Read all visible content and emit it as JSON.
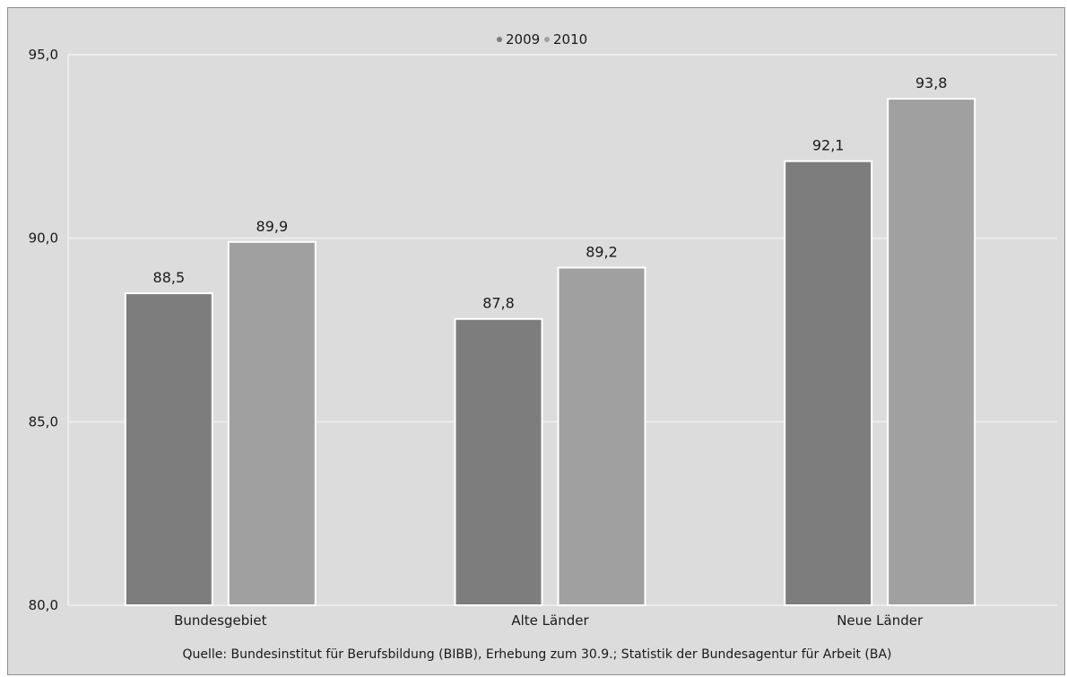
{
  "chart_data": {
    "type": "bar",
    "categories": [
      "Bundesgebiet",
      "Alte Länder",
      "Neue Länder"
    ],
    "series": [
      {
        "name": "2009",
        "values": [
          88.5,
          87.8,
          92.1
        ],
        "labels": [
          "88,5",
          "87,8",
          "92,1"
        ],
        "color": "#7d7d7d"
      },
      {
        "name": "2010",
        "values": [
          89.9,
          89.2,
          93.8
        ],
        "labels": [
          "89,9",
          "89,2",
          "93,8"
        ],
        "color": "#a0a0a0"
      }
    ],
    "ylim": [
      80,
      95
    ],
    "yticks": [
      {
        "value": 80,
        "label": "80,0"
      },
      {
        "value": 85,
        "label": "85,0"
      },
      {
        "value": 90,
        "label": "90,0"
      },
      {
        "value": 95,
        "label": "95,0"
      }
    ],
    "grid": true,
    "legend_position": "top-center",
    "title": "",
    "xlabel": "",
    "ylabel": ""
  },
  "source": "Quelle: Bundesinstitut für Berufsbildung (BIBB), Erhebung zum 30.9.; Statistik der Bundesagentur für Arbeit (BA)",
  "colors": {
    "background": "#dcdcdc",
    "grid": "#ececec",
    "border": "#8f8f8f"
  }
}
